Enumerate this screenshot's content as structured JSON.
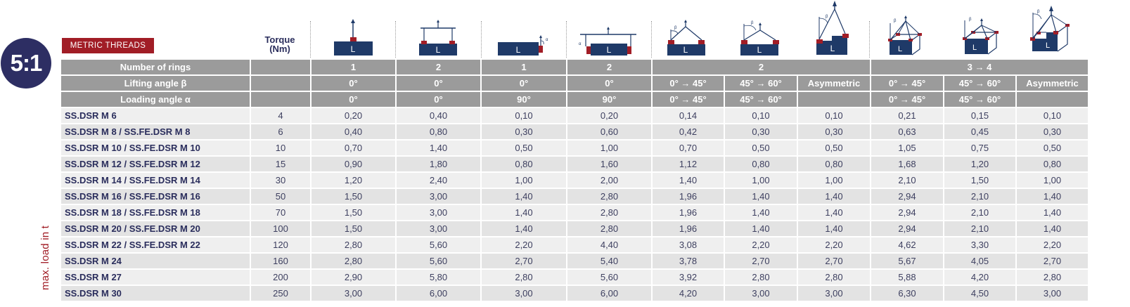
{
  "badge": {
    "ratio": "5:1"
  },
  "tag": {
    "label": "METRIC THREADS"
  },
  "torque_header": {
    "line1": "Torque",
    "line2": "(Nm)"
  },
  "side_label": "max. load in t",
  "icons": [
    {
      "name": "single-vertical-lift-icon"
    },
    {
      "name": "double-vertical-lift-icon"
    },
    {
      "name": "single-side-lift-icon"
    },
    {
      "name": "double-side-lift-icon"
    },
    {
      "name": "two-leg-sling-0-45-icon"
    },
    {
      "name": "two-leg-sling-45-60-icon"
    },
    {
      "name": "two-leg-asymmetric-icon"
    },
    {
      "name": "four-leg-sling-0-45-icon"
    },
    {
      "name": "four-leg-sling-45-60-icon"
    },
    {
      "name": "four-leg-asymmetric-icon"
    }
  ],
  "header": {
    "number_of_rings": {
      "label": "Number of rings",
      "values": [
        "1",
        "2",
        "1",
        "2",
        "2",
        "3 → 4"
      ]
    },
    "lifting_angle": {
      "label": "Lifting angle β",
      "values": [
        "0°",
        "0°",
        "0°",
        "0°",
        "0° → 45°",
        "45° → 60°",
        "Asymmetric",
        "0° → 45°",
        "45° → 60°",
        "Asymmetric"
      ]
    },
    "loading_angle": {
      "label": "Loading angle α",
      "values": [
        "0°",
        "0°",
        "90°",
        "90°",
        "0° → 45°",
        "45° → 60°",
        "",
        "0° → 45°",
        "45° → 60°",
        ""
      ]
    }
  },
  "rows": [
    {
      "name": "SS.DSR M 6",
      "torque": "4",
      "loads": [
        "0,20",
        "0,40",
        "0,10",
        "0,20",
        "0,14",
        "0,10",
        "0,10",
        "0,21",
        "0,15",
        "0,10"
      ]
    },
    {
      "name": "SS.DSR M 8 / SS.FE.DSR M 8",
      "torque": "6",
      "loads": [
        "0,40",
        "0,80",
        "0,30",
        "0,60",
        "0,42",
        "0,30",
        "0,30",
        "0,63",
        "0,45",
        "0,30"
      ]
    },
    {
      "name": "SS.DSR M 10 / SS.FE.DSR M 10",
      "torque": "10",
      "loads": [
        "0,70",
        "1,40",
        "0,50",
        "1,00",
        "0,70",
        "0,50",
        "0,50",
        "1,05",
        "0,75",
        "0,50"
      ]
    },
    {
      "name": "SS.DSR M 12 / SS.FE.DSR M 12",
      "torque": "15",
      "loads": [
        "0,90",
        "1,80",
        "0,80",
        "1,60",
        "1,12",
        "0,80",
        "0,80",
        "1,68",
        "1,20",
        "0,80"
      ]
    },
    {
      "name": "SS.DSR M 14 / SS.FE.DSR M 14",
      "torque": "30",
      "loads": [
        "1,20",
        "2,40",
        "1,00",
        "2,00",
        "1,40",
        "1,00",
        "1,00",
        "2,10",
        "1,50",
        "1,00"
      ]
    },
    {
      "name": "SS.DSR M 16 / SS.FE.DSR M 16",
      "torque": "50",
      "loads": [
        "1,50",
        "3,00",
        "1,40",
        "2,80",
        "1,96",
        "1,40",
        "1,40",
        "2,94",
        "2,10",
        "1,40"
      ]
    },
    {
      "name": "SS.DSR M 18 / SS.FE.DSR M 18",
      "torque": "70",
      "loads": [
        "1,50",
        "3,00",
        "1,40",
        "2,80",
        "1,96",
        "1,40",
        "1,40",
        "2,94",
        "2,10",
        "1,40"
      ]
    },
    {
      "name": "SS.DSR M 20 / SS.FE.DSR M 20",
      "torque": "100",
      "loads": [
        "1,50",
        "3,00",
        "1,40",
        "2,80",
        "1,96",
        "1,40",
        "1,40",
        "2,94",
        "2,10",
        "1,40"
      ]
    },
    {
      "name": "SS.DSR M 22 / SS.FE.DSR M 22",
      "torque": "120",
      "loads": [
        "2,80",
        "5,60",
        "2,20",
        "4,40",
        "3,08",
        "2,20",
        "2,20",
        "4,62",
        "3,30",
        "2,20"
      ]
    },
    {
      "name": "SS.DSR M 24",
      "torque": "160",
      "loads": [
        "2,80",
        "5,60",
        "2,70",
        "5,40",
        "3,78",
        "2,70",
        "2,70",
        "5,67",
        "4,05",
        "2,70"
      ]
    },
    {
      "name": "SS.DSR M 27",
      "torque": "200",
      "loads": [
        "2,90",
        "5,80",
        "2,80",
        "5,60",
        "3,92",
        "2,80",
        "2,80",
        "5,88",
        "4,20",
        "2,80"
      ]
    },
    {
      "name": "SS.DSR M 30",
      "torque": "250",
      "loads": [
        "3,00",
        "6,00",
        "3,00",
        "6,00",
        "4,20",
        "3,00",
        "3,00",
        "6,30",
        "4,50",
        "3,00"
      ]
    }
  ],
  "colors": {
    "navy": "#2d2e63",
    "block": "#1f3a68",
    "accent_red": "#a11d26",
    "header_gray": "#9b9b9b",
    "row_light": "#efefef",
    "row_dark": "#e3e3e3"
  }
}
